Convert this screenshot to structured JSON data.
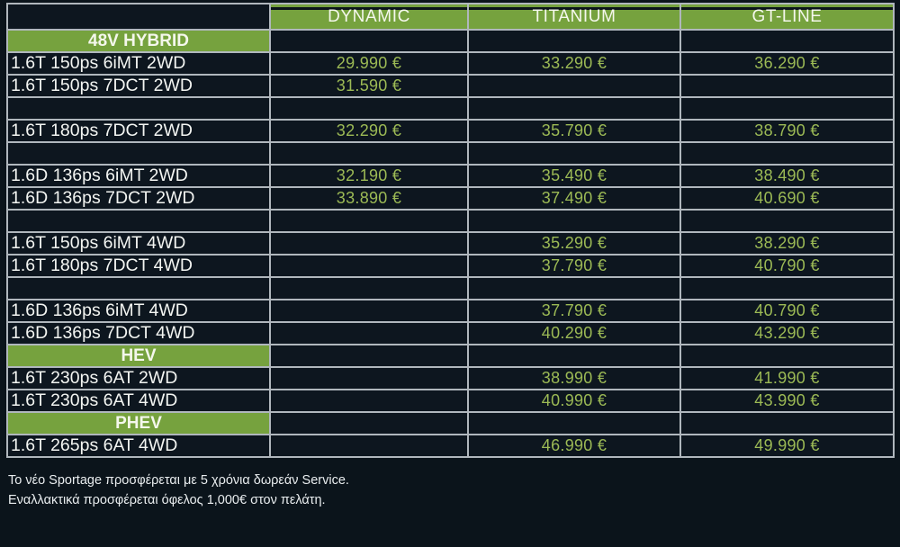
{
  "colors": {
    "page_background": "#0b141b",
    "cell_background": "#0d161f",
    "header_green": "#76a23e",
    "price_text_green": "#9cba55",
    "border_gray": "#b0b7bd",
    "text_white": "#f3f5f2"
  },
  "table": {
    "column_headers": [
      "",
      "DYNAMIC",
      "TITANIUM",
      "GT-LINE"
    ],
    "rows": [
      {
        "type": "section",
        "label": "48V HYBRID"
      },
      {
        "type": "model",
        "label": "1.6T 150ps 6iMT 2WD",
        "prices": [
          "29.990 €",
          "33.290 €",
          "36.290 €"
        ]
      },
      {
        "type": "model",
        "label": "1.6T 150ps 7DCT 2WD",
        "prices": [
          "31.590 €",
          "",
          ""
        ]
      },
      {
        "type": "spacer"
      },
      {
        "type": "model",
        "label": "1.6T 180ps 7DCT 2WD",
        "prices": [
          "32.290 €",
          "35.790 €",
          "38.790 €"
        ]
      },
      {
        "type": "spacer"
      },
      {
        "type": "model",
        "label": "1.6D 136ps 6iMT 2WD",
        "prices": [
          "32.190 €",
          "35.490 €",
          "38.490 €"
        ]
      },
      {
        "type": "model",
        "label": "1.6D 136ps 7DCT 2WD",
        "prices": [
          "33.890 €",
          "37.490 €",
          "40.690 €"
        ]
      },
      {
        "type": "spacer"
      },
      {
        "type": "model",
        "label": "1.6T 150ps 6iMT 4WD",
        "prices": [
          "",
          "35.290 €",
          "38.290 €"
        ]
      },
      {
        "type": "model",
        "label": "1.6T 180ps 7DCT 4WD",
        "prices": [
          "",
          "37.790 €",
          "40.790 €"
        ]
      },
      {
        "type": "spacer"
      },
      {
        "type": "model",
        "label": "1.6D 136ps 6iMT 4WD",
        "prices": [
          "",
          "37.790 €",
          "40.790 €"
        ]
      },
      {
        "type": "model",
        "label": "1.6D 136ps 7DCT 4WD",
        "prices": [
          "",
          "40.290 €",
          "43.290 €"
        ]
      },
      {
        "type": "section",
        "label": "HEV"
      },
      {
        "type": "model",
        "label": "1.6T 230ps 6AT 2WD",
        "prices": [
          "",
          "38.990 €",
          "41.990 €"
        ]
      },
      {
        "type": "model",
        "label": "1.6T 230ps 6AT 4WD",
        "prices": [
          "",
          "40.990 €",
          "43.990 €"
        ]
      },
      {
        "type": "section",
        "label": "PHEV"
      },
      {
        "type": "model",
        "label": "1.6T 265ps 6AT 4WD",
        "prices": [
          "",
          "46.990 €",
          "49.990 €"
        ]
      }
    ]
  },
  "footer": {
    "line1": "Το νέο Sportage προσφέρεται με 5 χρόνια δωρεάν Service.",
    "line2": "Εναλλακτικά προσφέρεται όφελος 1,000€ στον πελάτη."
  }
}
